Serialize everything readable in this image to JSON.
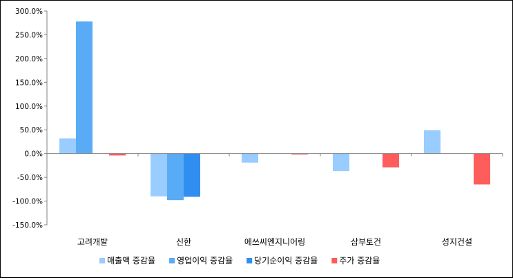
{
  "chart_data": {
    "type": "bar",
    "title": "",
    "xlabel": "",
    "ylabel": "",
    "ylim": [
      -150,
      300
    ],
    "y_tick_step": 50,
    "y_tick_format": "percent_1dp",
    "y_tick_labels": [
      "300.0%",
      "250.0%",
      "200.0%",
      "150.0%",
      "100.0%",
      "50.0%",
      "0.0%",
      "-50.0%",
      "-100.0%",
      "-150.0%"
    ],
    "grid": false,
    "legend_position": "bottom",
    "categories": [
      "고려개발",
      "신한",
      "에쓰씨엔지니어링",
      "삼부토건",
      "성지건설"
    ],
    "series": [
      {
        "name": "매출액 증감율",
        "color": "#99ccff",
        "values": [
          32,
          -90,
          -19,
          -37,
          49
        ]
      },
      {
        "name": "영업이익 증감율",
        "color": "#5aabf5",
        "values": [
          278,
          -98,
          0,
          0,
          0
        ]
      },
      {
        "name": "당기순이익 증감율",
        "color": "#2f8ef0",
        "values": [
          0,
          -91,
          0,
          0,
          0
        ]
      },
      {
        "name": "주가 증감율",
        "color": "#ff5c5c",
        "values": [
          -4,
          0,
          -2,
          -29,
          -65
        ]
      }
    ]
  }
}
